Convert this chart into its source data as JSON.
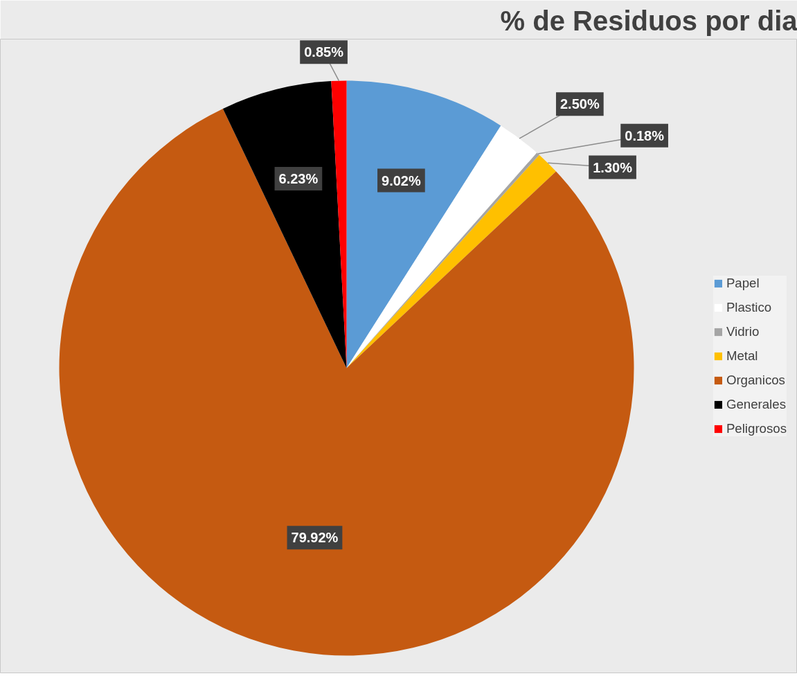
{
  "chart_data": {
    "type": "pie",
    "title": "% de Residuos por dia",
    "categories": [
      "Papel",
      "Plastico",
      "Vidrio",
      "Metal",
      "Organicos",
      "Generales",
      "Peligrosos"
    ],
    "values": [
      9.02,
      2.5,
      0.18,
      1.3,
      79.92,
      6.23,
      0.85
    ],
    "value_labels": [
      "9.02%",
      "2.50%",
      "0.18%",
      "1.30%",
      "79.92%",
      "6.23%",
      "0.85%"
    ],
    "colors": [
      "#5b9bd5",
      "#ffffff",
      "#a5a5a5",
      "#ffc000",
      "#c55a11",
      "#000000",
      "#ff0000"
    ],
    "legend": "right"
  }
}
